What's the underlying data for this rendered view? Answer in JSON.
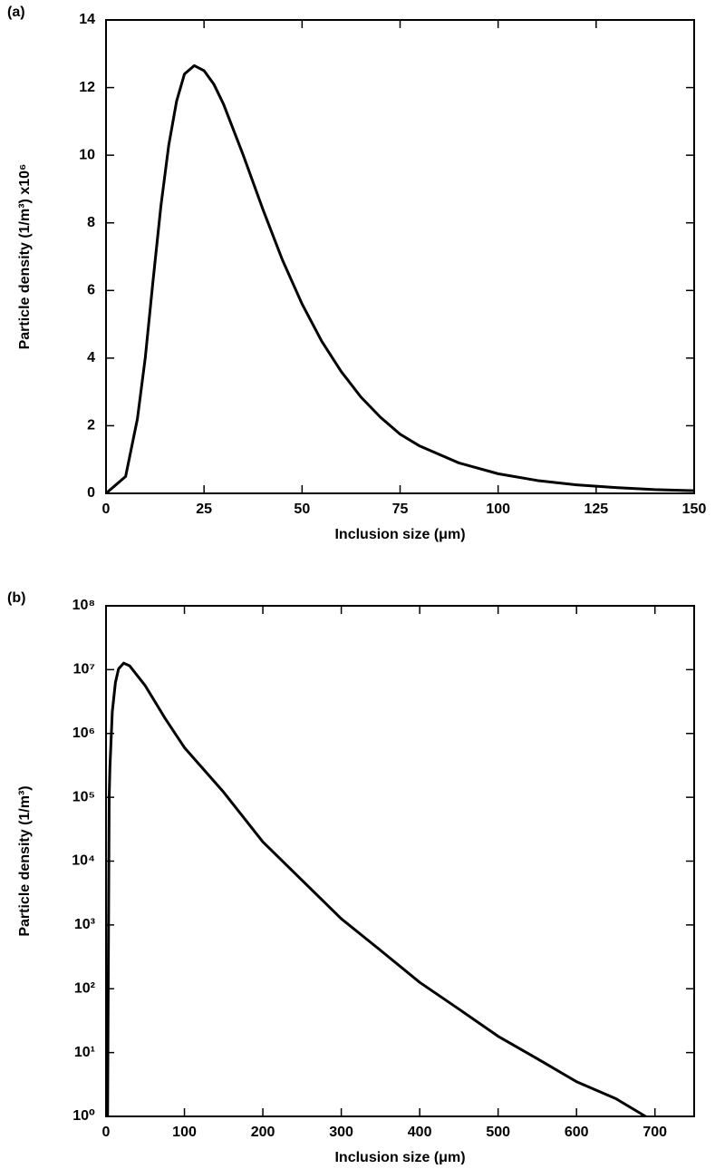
{
  "chart_data": [
    {
      "type": "line",
      "panel_label": "(a)",
      "x_label": "Inclusion size (μm)",
      "y_label": "Particle density (1/m³) x10⁶",
      "x": [
        0,
        5,
        8,
        10,
        12,
        14,
        16,
        18,
        20,
        22.5,
        25,
        27.5,
        30,
        35,
        40,
        45,
        50,
        55,
        60,
        65,
        70,
        75,
        80,
        90,
        100,
        110,
        120,
        130,
        140,
        150
      ],
      "series": [
        {
          "name": "Particle density",
          "color": "#000000",
          "values": [
            0,
            0.5,
            2.2,
            4,
            6.3,
            8.5,
            10.3,
            11.6,
            12.4,
            12.65,
            12.5,
            12.1,
            11.5,
            10,
            8.4,
            6.9,
            5.6,
            4.5,
            3.6,
            2.85,
            2.25,
            1.75,
            1.4,
            0.9,
            0.58,
            0.38,
            0.25,
            0.17,
            0.11,
            0.08
          ]
        }
      ],
      "xlim": [
        0,
        150
      ],
      "xticks": [
        0,
        25,
        50,
        75,
        100,
        125,
        150
      ],
      "ylim": [
        0,
        14
      ],
      "yticks": [
        0,
        2,
        4,
        6,
        8,
        10,
        12,
        14
      ],
      "log_y": false
    },
    {
      "type": "line",
      "panel_label": "(b)",
      "x_label": "Inclusion size (μm)",
      "y_label": "Particle density (1/m³)",
      "x": [
        2,
        4,
        5,
        8,
        12,
        16,
        22.5,
        30,
        50,
        75,
        100,
        150,
        200,
        250,
        300,
        350,
        400,
        450,
        500,
        550,
        600,
        650,
        688
      ],
      "series": [
        {
          "name": "Particle density",
          "color": "#000000",
          "values": [
            1,
            100000,
            300000,
            2200000,
            6300000,
            10300000,
            12650000,
            11500000,
            5600000,
            1750000,
            600000,
            120000,
            20000,
            5000,
            1250,
            400,
            126,
            48,
            18,
            8,
            3.5,
            1.9,
            1
          ]
        }
      ],
      "xlim": [
        0,
        750
      ],
      "xticks": [
        0,
        100,
        200,
        300,
        400,
        500,
        600,
        700
      ],
      "ylim": [
        1,
        100000000
      ],
      "yticks": [
        {
          "value": 1,
          "label": "10⁰"
        },
        {
          "value": 10,
          "label": "10¹"
        },
        {
          "value": 100,
          "label": "10²"
        },
        {
          "value": 1000,
          "label": "10³"
        },
        {
          "value": 10000,
          "label": "10⁴"
        },
        {
          "value": 100000,
          "label": "10⁵"
        },
        {
          "value": 1000000,
          "label": "10⁶"
        },
        {
          "value": 10000000,
          "label": "10⁷"
        },
        {
          "value": 100000000,
          "label": "10⁸"
        }
      ],
      "log_y": true
    }
  ]
}
